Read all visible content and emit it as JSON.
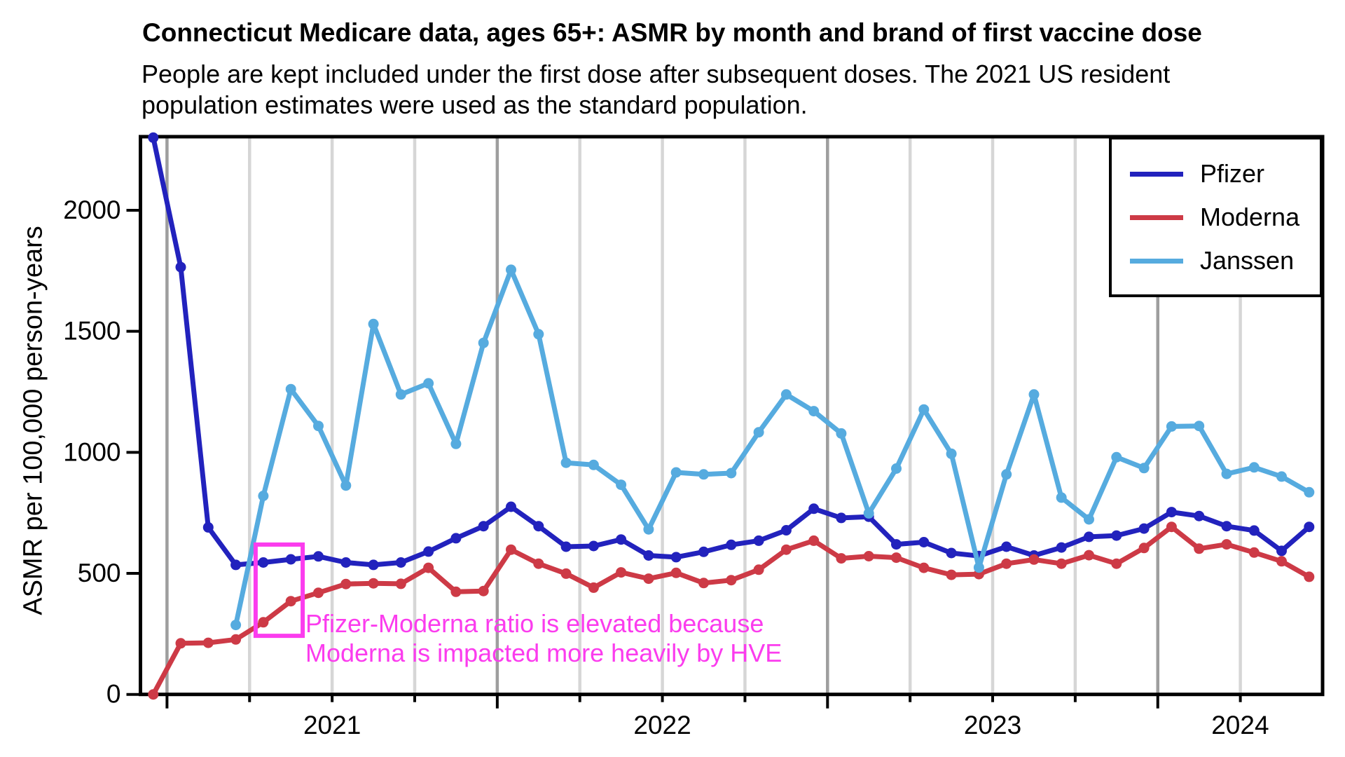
{
  "page": {
    "title": "Connecticut Medicare data, ages 65+: ASMR by month and brand of first vaccine dose",
    "subtitle_line1": "People are kept included under the first dose after subsequent doses. The 2021 US resident",
    "subtitle_line2": "population estimates were used as the standard population."
  },
  "annotation": {
    "line1": "Pfizer-Moderna ratio is elevated because",
    "line2": "Moderna is impacted more heavily by HVE",
    "color": "#fb3cee"
  },
  "chart_data": {
    "type": "line",
    "title": "Connecticut Medicare data, ages 65+: ASMR by month and brand of first vaccine dose",
    "xlabel": "",
    "ylabel": "ASMR per 100,000 person-years",
    "ylim": [
      0,
      2304
    ],
    "yticks": [
      "0",
      "500",
      "1000",
      "1500",
      "2000"
    ],
    "ytick_values": [
      0,
      500,
      1000,
      1500,
      2000
    ],
    "xtick_year_labels": [
      "2021",
      "2022",
      "2023",
      "2024"
    ],
    "grid": "vertical-quarterly",
    "legend_position": "top-right",
    "months": [
      "2020-12",
      "2021-01",
      "2021-02",
      "2021-03",
      "2021-04",
      "2021-05",
      "2021-06",
      "2021-07",
      "2021-08",
      "2021-09",
      "2021-10",
      "2021-11",
      "2021-12",
      "2022-01",
      "2022-02",
      "2022-03",
      "2022-04",
      "2022-05",
      "2022-06",
      "2022-07",
      "2022-08",
      "2022-09",
      "2022-10",
      "2022-11",
      "2022-12",
      "2023-01",
      "2023-02",
      "2023-03",
      "2023-04",
      "2023-05",
      "2023-06",
      "2023-07",
      "2023-08",
      "2023-09",
      "2023-10",
      "2023-11",
      "2023-12",
      "2024-01",
      "2024-02",
      "2024-03",
      "2024-04",
      "2024-05",
      "2024-06"
    ],
    "series": [
      {
        "name": "Pfizer",
        "color": "#2222bd",
        "values": [
          2300,
          1765,
          690,
          535,
          545,
          558,
          570,
          545,
          535,
          545,
          590,
          645,
          695,
          775,
          695,
          610,
          613,
          640,
          574,
          567,
          589,
          618,
          635,
          678,
          767,
          729,
          734,
          620,
          629,
          584,
          572,
          610,
          574,
          607,
          651,
          656,
          685,
          753,
          737,
          695,
          677,
          593,
          692
        ]
      },
      {
        "name": "Moderna",
        "color": "#cd3a46",
        "values": [
          0,
          211,
          213,
          227,
          298,
          385,
          420,
          456,
          459,
          457,
          523,
          424,
          427,
          598,
          540,
          499,
          441,
          504,
          478,
          502,
          460,
          472,
          515,
          598,
          635,
          562,
          571,
          565,
          523,
          494,
          497,
          540,
          557,
          540,
          575,
          540,
          605,
          692,
          602,
          620,
          586,
          550,
          486
        ]
      },
      {
        "name": "Janssen",
        "color": "#56abdf",
        "values": [
          null,
          null,
          null,
          287,
          820,
          1261,
          1109,
          863,
          1530,
          1239,
          1285,
          1035,
          1452,
          1754,
          1488,
          957,
          948,
          866,
          682,
          917,
          909,
          914,
          1083,
          1239,
          1170,
          1078,
          748,
          933,
          1177,
          994,
          524,
          909,
          1239,
          813,
          723,
          980,
          935,
          1107,
          1109,
          911,
          938,
          900,
          835
        ]
      }
    ],
    "highlight_box": {
      "month_index_start": 3.72,
      "month_index_end": 5.43,
      "value_min": 242,
      "value_max": 619,
      "color": "#fb3cee"
    },
    "grid_colors": {
      "year_line": "#9e9e9e",
      "quarter_line": "#d6d6d6"
    }
  }
}
